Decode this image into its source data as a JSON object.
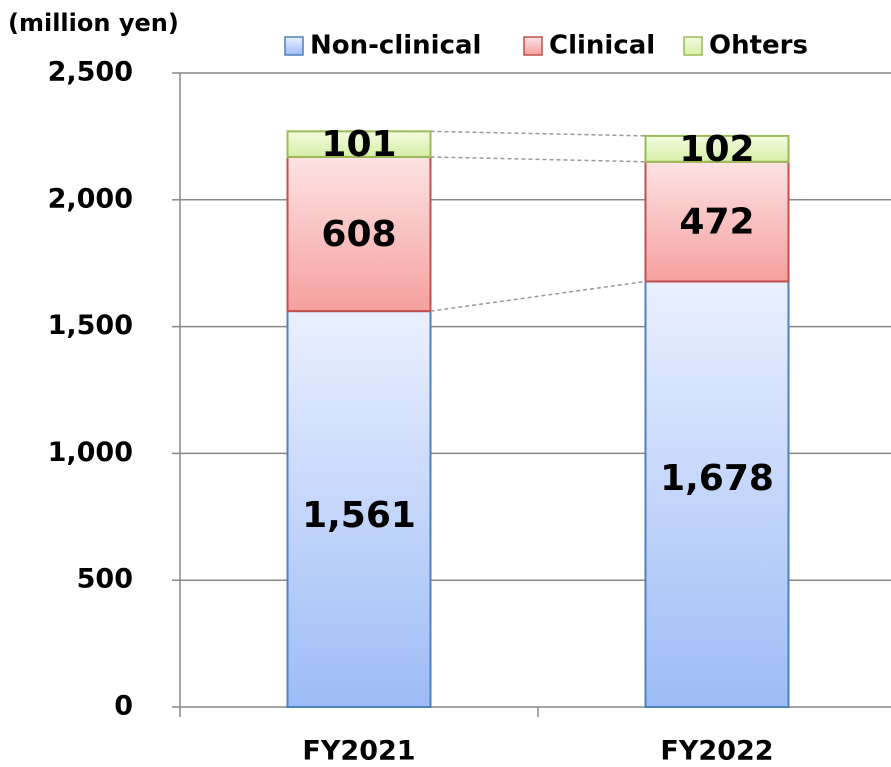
{
  "chart_data": {
    "type": "stacked_bar",
    "y_axis_label": "(million yen)",
    "categories": [
      "FY2021",
      "FY2022"
    ],
    "series": [
      {
        "name": "Non-clinical",
        "color": "#a9c4f7",
        "values": [
          1561,
          1678
        ],
        "value_labels": [
          "1,561",
          "1,678"
        ]
      },
      {
        "name": "Clinical",
        "color": "#f7a6a6",
        "values": [
          608,
          472
        ]
      },
      {
        "name": "Ohters",
        "color": "#def3b4",
        "values": [
          101,
          102
        ]
      }
    ],
    "ylim": [
      0,
      2500
    ],
    "yticks": [
      0,
      500,
      {
        "value": 1000,
        "label": "1,000"
      },
      {
        "value": 1500,
        "label": "1,500"
      },
      {
        "value": 2000,
        "label": "2,000"
      },
      {
        "value": 2500,
        "label": "2,500"
      }
    ],
    "grid": true,
    "legend": "top"
  }
}
